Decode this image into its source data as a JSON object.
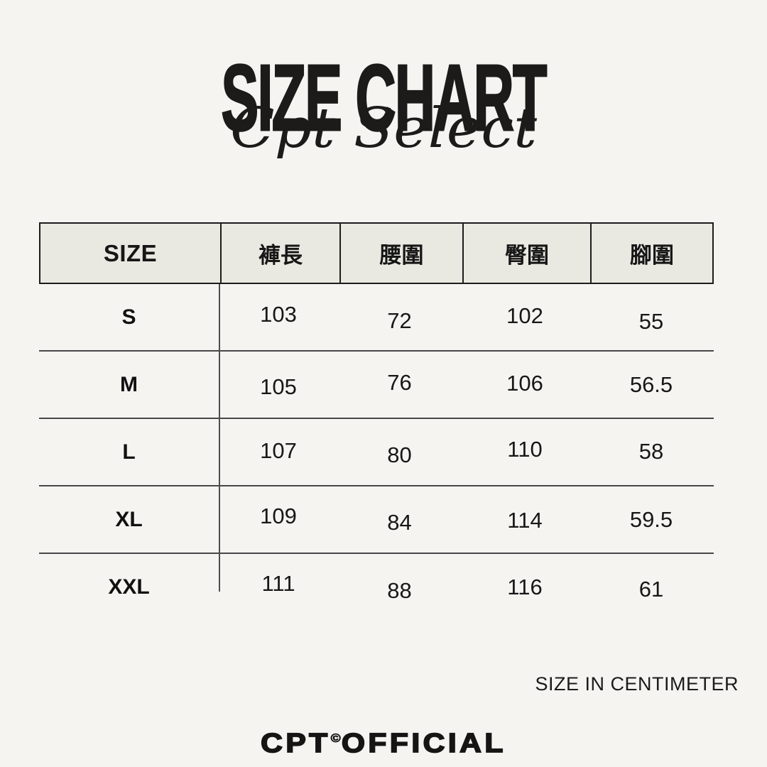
{
  "page": {
    "title": "SIZE CHART",
    "subtitle_script": "Cpt Select",
    "unit_note": "SIZE IN CENTIMETER",
    "brand": {
      "prefix": "CPT",
      "copyright": "©",
      "suffix": "OFFICIAL"
    }
  },
  "size_table": {
    "columns": [
      "SIZE",
      "褲長",
      "腰圍",
      "臀圍",
      "腳圍"
    ],
    "rows": [
      {
        "size": "S",
        "values": [
          "103",
          "72",
          "102",
          "55"
        ]
      },
      {
        "size": "M",
        "values": [
          "105",
          "76",
          "106",
          "56.5"
        ]
      },
      {
        "size": "L",
        "values": [
          "107",
          "80",
          "110",
          "58"
        ]
      },
      {
        "size": "XL",
        "values": [
          "109",
          "84",
          "114",
          "59.5"
        ]
      },
      {
        "size": "XXL",
        "values": [
          "111",
          "88",
          "116",
          "61"
        ]
      }
    ]
  },
  "chart_data": {
    "type": "table",
    "title": "SIZE CHART",
    "subtitle": "Cpt Select",
    "unit": "cm",
    "columns": [
      "SIZE",
      "褲長",
      "腰圍",
      "臀圍",
      "腳圍"
    ],
    "categories": [
      "S",
      "M",
      "L",
      "XL",
      "XXL"
    ],
    "series": [
      {
        "name": "褲長",
        "values": [
          103,
          105,
          107,
          109,
          111
        ]
      },
      {
        "name": "腰圍",
        "values": [
          72,
          76,
          80,
          84,
          88
        ]
      },
      {
        "name": "臀圍",
        "values": [
          102,
          106,
          110,
          114,
          116
        ]
      },
      {
        "name": "腳圍",
        "values": [
          55,
          56.5,
          58,
          59.5,
          61
        ]
      }
    ]
  },
  "colors": {
    "background": "#f5f4f1",
    "header_background": "#e9e8e1",
    "text": "#191919",
    "table_border": "#1c1c1c",
    "row_line": "#474747"
  }
}
